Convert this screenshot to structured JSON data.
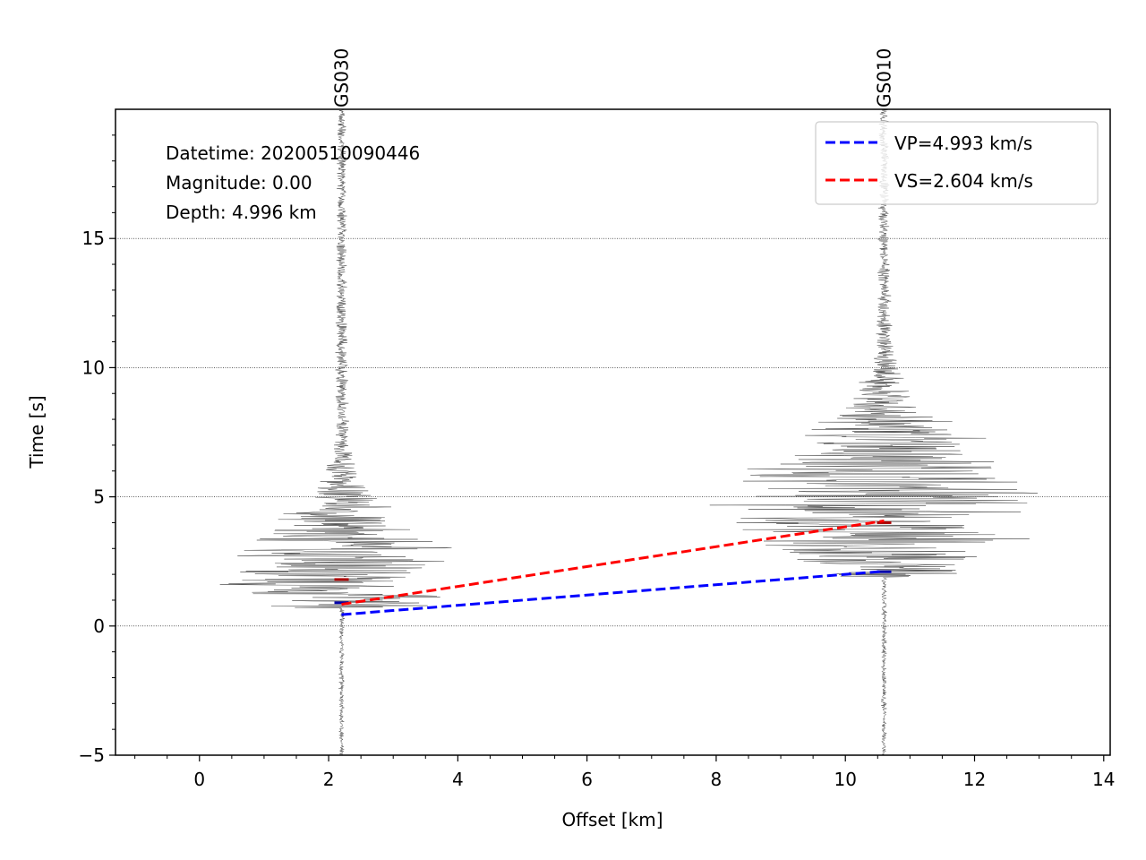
{
  "chart_data": {
    "type": "line",
    "xlabel": "Offset [km]",
    "ylabel": "Time [s]",
    "xlim": [
      -1.3,
      14.1
    ],
    "ylim": [
      -5,
      20
    ],
    "x_ticks": [
      0,
      2,
      4,
      6,
      8,
      10,
      12,
      14
    ],
    "y_ticks": [
      -5,
      0,
      5,
      10,
      15
    ],
    "grid_y": [
      0,
      5,
      10,
      15
    ],
    "info": {
      "datetime": "Datetime: 20200510090446",
      "magnitude": "Magnitude: 0.00",
      "depth": "Depth: 4.996 km"
    },
    "stations": [
      {
        "name": "GS030",
        "offset": 2.2,
        "p_pick": 0.9,
        "s_pick": 1.8,
        "envelope_center": 2.0,
        "envelope_amp": 2.0,
        "envelope_width": 1.8
      },
      {
        "name": "GS010",
        "offset": 10.6,
        "p_pick": 2.1,
        "s_pick": 4.0,
        "envelope_center": 4.8,
        "envelope_amp": 2.8,
        "envelope_width": 2.2
      }
    ],
    "series": [
      {
        "name": "VP=4.993 km/s",
        "color": "#0000ff",
        "x": [
          2.2,
          10.6
        ],
        "y": [
          0.44,
          2.12
        ]
      },
      {
        "name": "VS=2.604 km/s",
        "color": "#ff0000",
        "x": [
          2.2,
          10.6
        ],
        "y": [
          0.84,
          4.07
        ]
      }
    ],
    "legend_position": "top-right"
  }
}
